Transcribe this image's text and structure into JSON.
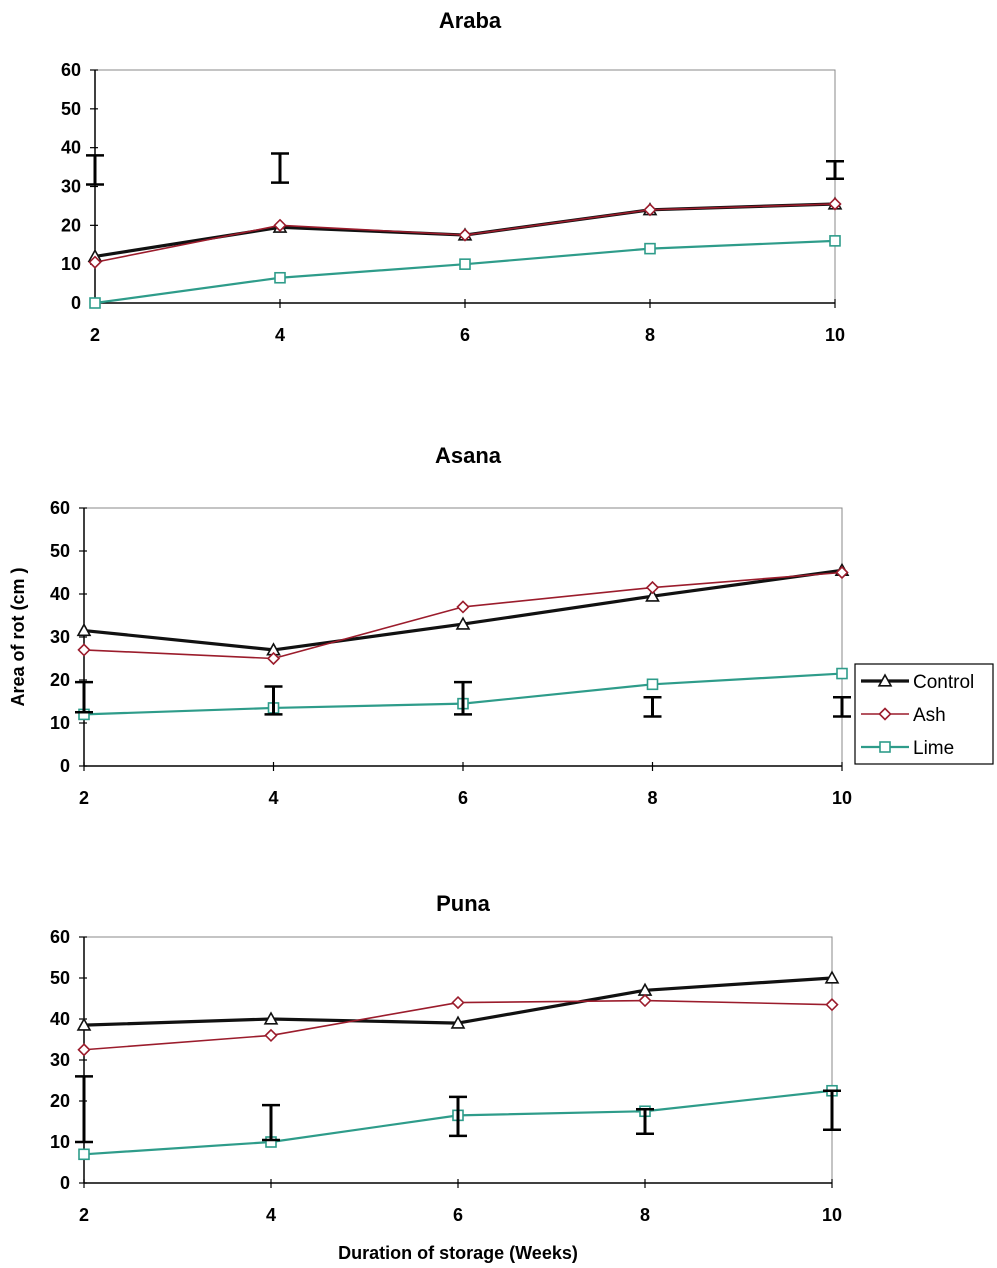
{
  "chart_data": [
    {
      "type": "line",
      "title": "Araba",
      "x": [
        2,
        4,
        6,
        8,
        10
      ],
      "xlim": [
        2,
        10
      ],
      "ylim": [
        0,
        60
      ],
      "yticks": [
        0,
        10,
        20,
        30,
        40,
        50,
        60
      ],
      "xticks": [
        2,
        4,
        6,
        8,
        10
      ],
      "series": [
        {
          "name": "Control",
          "values": [
            12,
            19.5,
            17.5,
            24,
            25.5
          ],
          "color": "#111111",
          "marker": "triangle"
        },
        {
          "name": "Ash",
          "values": [
            10.5,
            20,
            17.5,
            24,
            25.5
          ],
          "color": "#9b1c2c",
          "marker": "diamond"
        },
        {
          "name": "Lime",
          "values": [
            0,
            6.5,
            10,
            14,
            16
          ],
          "color": "#2e9c8a",
          "marker": "square"
        }
      ],
      "error_bars": [
        {
          "x": 2,
          "low": 30.5,
          "high": 38
        },
        {
          "x": 4,
          "low": 31,
          "high": 38.5
        },
        {
          "x": 10,
          "low": 32,
          "high": 36.5
        }
      ]
    },
    {
      "type": "line",
      "title": "Asana",
      "ylabel": "Area of rot (cm )",
      "x": [
        2,
        4,
        6,
        8,
        10
      ],
      "xlim": [
        2,
        10
      ],
      "ylim": [
        0,
        60
      ],
      "yticks": [
        0,
        10,
        20,
        30,
        40,
        50,
        60
      ],
      "xticks": [
        2,
        4,
        6,
        8,
        10
      ],
      "series": [
        {
          "name": "Control",
          "values": [
            31.5,
            27,
            33,
            39.5,
            45.5
          ],
          "color": "#111111",
          "marker": "triangle"
        },
        {
          "name": "Ash",
          "values": [
            27,
            25,
            37,
            41.5,
            45
          ],
          "color": "#9b1c2c",
          "marker": "diamond"
        },
        {
          "name": "Lime",
          "values": [
            12,
            13.5,
            14.5,
            19,
            21.5
          ],
          "color": "#2e9c8a",
          "marker": "square"
        }
      ],
      "error_bars": [
        {
          "x": 2,
          "low": 12.5,
          "high": 19.5
        },
        {
          "x": 4,
          "low": 12,
          "high": 18.5
        },
        {
          "x": 6,
          "low": 12,
          "high": 19.5
        },
        {
          "x": 8,
          "low": 11.5,
          "high": 16
        },
        {
          "x": 10,
          "low": 11.5,
          "high": 16
        }
      ],
      "legend": {
        "placement": "right",
        "entries": [
          "Control",
          "Ash",
          "Lime"
        ]
      }
    },
    {
      "type": "line",
      "title": "Puna",
      "xlabel": "Duration of storage (Weeks)",
      "x": [
        2,
        4,
        6,
        8,
        10
      ],
      "xlim": [
        2,
        10
      ],
      "ylim": [
        0,
        60
      ],
      "yticks": [
        0,
        10,
        20,
        30,
        40,
        50,
        60
      ],
      "xticks": [
        2,
        4,
        6,
        8,
        10
      ],
      "series": [
        {
          "name": "Control",
          "values": [
            38.5,
            40,
            39,
            47,
            50
          ],
          "color": "#111111",
          "marker": "triangle"
        },
        {
          "name": "Ash",
          "values": [
            32.5,
            36,
            44,
            44.5,
            43.5
          ],
          "color": "#9b1c2c",
          "marker": "diamond"
        },
        {
          "name": "Lime",
          "values": [
            7,
            10,
            16.5,
            17.5,
            22.5
          ],
          "color": "#2e9c8a",
          "marker": "square"
        }
      ],
      "error_bars": [
        {
          "x": 2,
          "low": 10,
          "high": 26
        },
        {
          "x": 4,
          "low": 10.5,
          "high": 19
        },
        {
          "x": 6,
          "low": 11.5,
          "high": 21
        },
        {
          "x": 8,
          "low": 12,
          "high": 18
        },
        {
          "x": 10,
          "low": 13,
          "high": 22.5
        }
      ]
    }
  ]
}
